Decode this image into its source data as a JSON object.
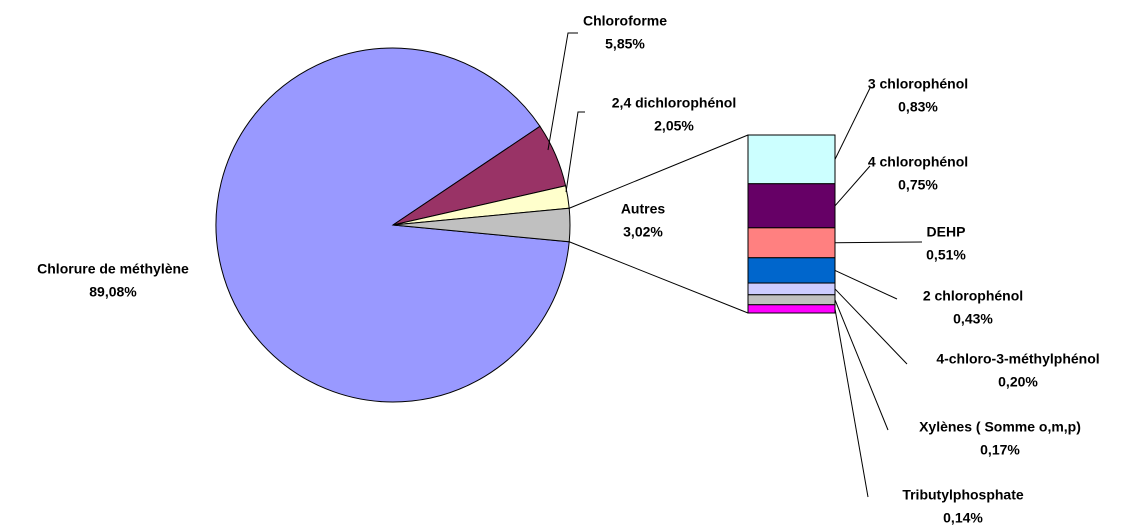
{
  "chart_data": {
    "type": "pie",
    "categories": [
      "Chlorure de méthylène",
      "Chloroforme",
      "2,4 dichlorophénol",
      "Autres"
    ],
    "values": [
      89.08,
      5.85,
      2.05,
      3.02
    ],
    "value_labels": [
      "89,08%",
      "5,85%",
      "2,05%",
      "3,02%"
    ],
    "colors": [
      "#9999ff",
      "#993366",
      "#ffffcc",
      "#c0c0c0"
    ],
    "breakdown": {
      "categories": [
        "3 chlorophénol",
        "4 chlorophénol",
        "DEHP",
        "2 chlorophénol",
        "4-chloro-3-méthylphénol",
        "Xylènes ( Somme o,m,p)",
        "Tributylphosphate"
      ],
      "values": [
        0.83,
        0.75,
        0.51,
        0.43,
        0.2,
        0.17,
        0.14
      ],
      "value_labels": [
        "0,83%",
        "0,75%",
        "0,51%",
        "0,43%",
        "0,20%",
        "0,17%",
        "0,14%"
      ],
      "colors": [
        "#ccffff",
        "#660066",
        "#ff8080",
        "#0066cc",
        "#ccccff",
        "#c0c0c0",
        "#ff00ff"
      ]
    }
  }
}
